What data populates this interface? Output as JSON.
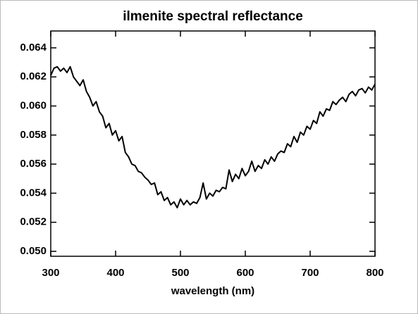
{
  "chart_data": {
    "type": "line",
    "title": "ilmenite spectral reflectance",
    "x_label": "wavelength (nm)",
    "x": [
      300,
      305,
      310,
      315,
      320,
      325,
      330,
      335,
      340,
      345,
      350,
      355,
      360,
      365,
      370,
      375,
      380,
      385,
      390,
      395,
      400,
      405,
      410,
      415,
      420,
      425,
      430,
      435,
      440,
      445,
      450,
      455,
      460,
      465,
      470,
      475,
      480,
      485,
      490,
      495,
      500,
      505,
      510,
      515,
      520,
      525,
      530,
      535,
      540,
      545,
      550,
      555,
      560,
      565,
      570,
      575,
      580,
      585,
      590,
      595,
      600,
      605,
      610,
      615,
      620,
      625,
      630,
      635,
      640,
      645,
      650,
      655,
      660,
      665,
      670,
      675,
      680,
      685,
      690,
      695,
      700,
      705,
      710,
      715,
      720,
      725,
      730,
      735,
      740,
      745,
      750,
      755,
      760,
      765,
      770,
      775,
      780,
      785,
      790,
      795,
      800
    ],
    "series": [
      {
        "color": "#000000",
        "values": [
          0.0621,
          0.0626,
          0.0627,
          0.0624,
          0.0626,
          0.0623,
          0.0627,
          0.062,
          0.0617,
          0.0614,
          0.0618,
          0.061,
          0.0606,
          0.06,
          0.0603,
          0.0596,
          0.0593,
          0.0585,
          0.0588,
          0.058,
          0.0583,
          0.0576,
          0.0579,
          0.0568,
          0.0565,
          0.056,
          0.0559,
          0.0555,
          0.0554,
          0.0551,
          0.0549,
          0.0546,
          0.0547,
          0.0539,
          0.0541,
          0.0535,
          0.0537,
          0.0532,
          0.0534,
          0.053,
          0.0536,
          0.0532,
          0.0535,
          0.0532,
          0.0534,
          0.0533,
          0.0537,
          0.0547,
          0.0536,
          0.054,
          0.0538,
          0.0542,
          0.0541,
          0.0544,
          0.0543,
          0.0556,
          0.0548,
          0.0553,
          0.055,
          0.0557,
          0.0552,
          0.0555,
          0.0562,
          0.0555,
          0.0559,
          0.0557,
          0.0563,
          0.056,
          0.0565,
          0.0562,
          0.0567,
          0.0569,
          0.0568,
          0.0574,
          0.0572,
          0.0579,
          0.0575,
          0.0582,
          0.058,
          0.0586,
          0.0584,
          0.059,
          0.0588,
          0.0596,
          0.0593,
          0.0598,
          0.0597,
          0.0603,
          0.0601,
          0.0604,
          0.0606,
          0.0603,
          0.0608,
          0.061,
          0.0607,
          0.0611,
          0.0612,
          0.0609,
          0.0613,
          0.0611,
          0.0615
        ]
      }
    ],
    "xlim": [
      300,
      800
    ],
    "xticks": [
      300,
      400,
      500,
      600,
      700,
      800
    ],
    "ylim": [
      0.04966,
      0.06516
    ],
    "yticks": [
      {
        "value": 0.05,
        "label": "0.050"
      },
      0.052,
      0.054,
      0.056,
      0.058,
      {
        "value": 0.06,
        "label": "0.060"
      },
      0.062,
      0.064
    ]
  }
}
